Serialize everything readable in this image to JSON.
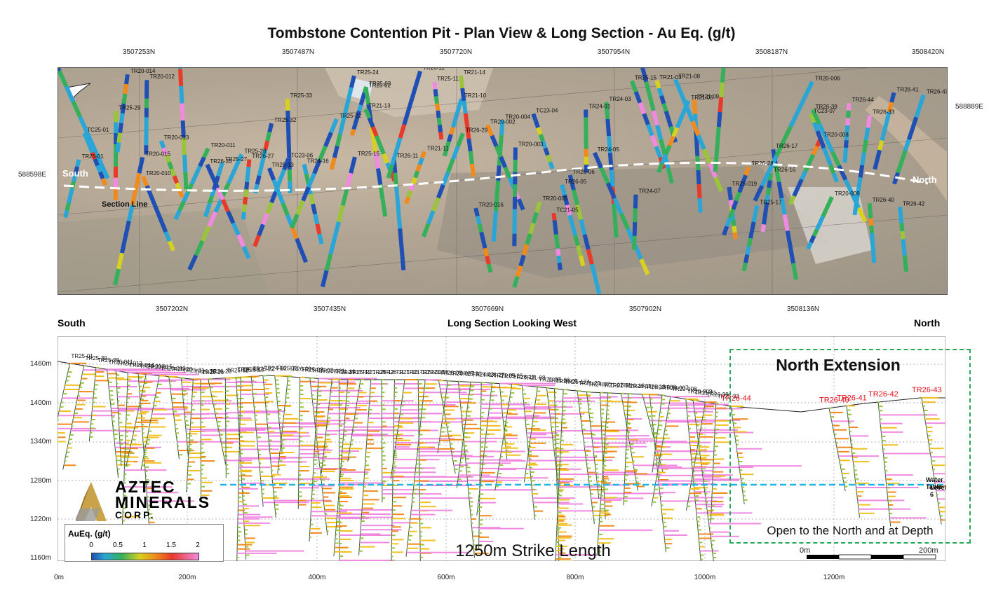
{
  "title": "Tombstone Contention Pit - Plan View & Long Section - Au Eq. (g/t)",
  "plan_view": {
    "top_northings": [
      "3507253N",
      "3507487N",
      "3507720N",
      "3507954N",
      "3508187N",
      "3508420N"
    ],
    "bottom_northings": [
      "3507202N",
      "3507435N",
      "3507669N",
      "3507902N",
      "3508136N"
    ],
    "eastings": [
      "588889E",
      "588598E"
    ],
    "south_label": "South",
    "north_label": "North",
    "section_line_label": "Section Line",
    "hole_labels": [
      "TR25-01",
      "TR25-30",
      "TC25-01",
      "TR25-29",
      "TR20-014",
      "TR20-015",
      "TR20-012",
      "TR20-010",
      "TR20-013",
      "TR25-31",
      "TR20-011",
      "TR25-27",
      "TR25-28",
      "TR26-26",
      "TR26-27",
      "TR25-32",
      "TC23-06",
      "TR25-13",
      "TR25-33",
      "TR24-16",
      "TR25-22",
      "TR25-15",
      "TR25-24",
      "TR25-03",
      "TR25-02",
      "TR21-13",
      "TR26-11",
      "TR26-12",
      "TR21-11",
      "TR25-11",
      "TR26-29",
      "TR21-10",
      "TR21-14",
      "TR20-016",
      "TR20-004",
      "TR20-002",
      "TR20-003",
      "TR20-005",
      "TC23-04",
      "TC21-05",
      "TR26-05",
      "TR26-06",
      "TR24-01",
      "TR24-03",
      "TR24-05",
      "TR24-07",
      "TR25-15",
      "TR21-04",
      "TR21-03",
      "TR21-05",
      "TR21-09",
      "TR21-08",
      "TR20-020",
      "TR25-019",
      "TR26-28",
      "TR25-17",
      "TR26-16",
      "TR26-17",
      "TR20-006",
      "TR20-008",
      "TR20-009",
      "TC23-07",
      "TR26-39",
      "TR26-44",
      "TR26-33",
      "TR26-40",
      "TR26-41",
      "TR26-42",
      "TR26-43"
    ]
  },
  "long_section": {
    "south_label": "South",
    "title": "Long Section Looking West",
    "north_label": "North",
    "elevation_ticks": [
      "1460m",
      "1400m",
      "1340m",
      "1280m",
      "1220m",
      "1160m"
    ],
    "distance_ticks": [
      "0m",
      "200m",
      "400m",
      "600m",
      "800m",
      "1000m",
      "1200m"
    ],
    "hole_labels": [
      "TR25-01",
      "TR25-30",
      "TR25-29",
      "TR20-011",
      "TR20-012",
      "TR20-014",
      "TR20-010",
      "TR20-015",
      "TR20-013",
      "TR25-28",
      "TR25-31",
      "TR25-27",
      "TR26-26",
      "TR26-28",
      "TR25-32",
      "TR25-33",
      "TR25-13",
      "TR25-22",
      "TR24-16",
      "TR25-23",
      "TR26-29",
      "TR25-03",
      "TR25-02",
      "TR20-021",
      "TR21-13",
      "TR24-17",
      "TR25-12",
      "TR21-12",
      "TR26-12",
      "TR26-11",
      "TR21-10",
      "TR21-11",
      "TR20-018",
      "TR21-16",
      "TR26-05",
      "TR20-007",
      "TR25-30",
      "TR24-03",
      "TR26-27",
      "TR21-09",
      "TR25-25",
      "TR26-19",
      "TR21-08",
      "TR21-07",
      "TR21-06",
      "TR24-05",
      "TR25-17A",
      "TR21-23",
      "TR24-07",
      "TR21-02",
      "TR21-01",
      "TR26-16",
      "TR26-15",
      "TR26-18",
      "TR20-006",
      "TR20-007",
      "TR20-008",
      "TR20-009",
      "TR21-21",
      "TR26-39",
      "TR25-33"
    ],
    "highlight_holes": [
      "TR26-44",
      "TR26-40",
      "TR26-41",
      "TR26-42",
      "TR26-43"
    ],
    "water_table_label": "Water Table",
    "water_table_sub": "Level 6",
    "north_extension_title": "North Extension",
    "north_extension_note": "Open to the North and at Depth",
    "strike_length": "1250m Strike Length",
    "scale_left": "0m",
    "scale_right": "200m"
  },
  "legend": {
    "title": "AuEq. (g/t)",
    "ticks": [
      "0",
      "0.5",
      "1",
      "1.5",
      "2"
    ]
  },
  "logo": {
    "line1": "AZTEC",
    "line2": "MINERALS",
    "line3": "CORP."
  },
  "colors": {
    "water_table": "#1fb4e6",
    "north_ext_border": "#22aa55",
    "highlight_label": "#e3101a"
  }
}
